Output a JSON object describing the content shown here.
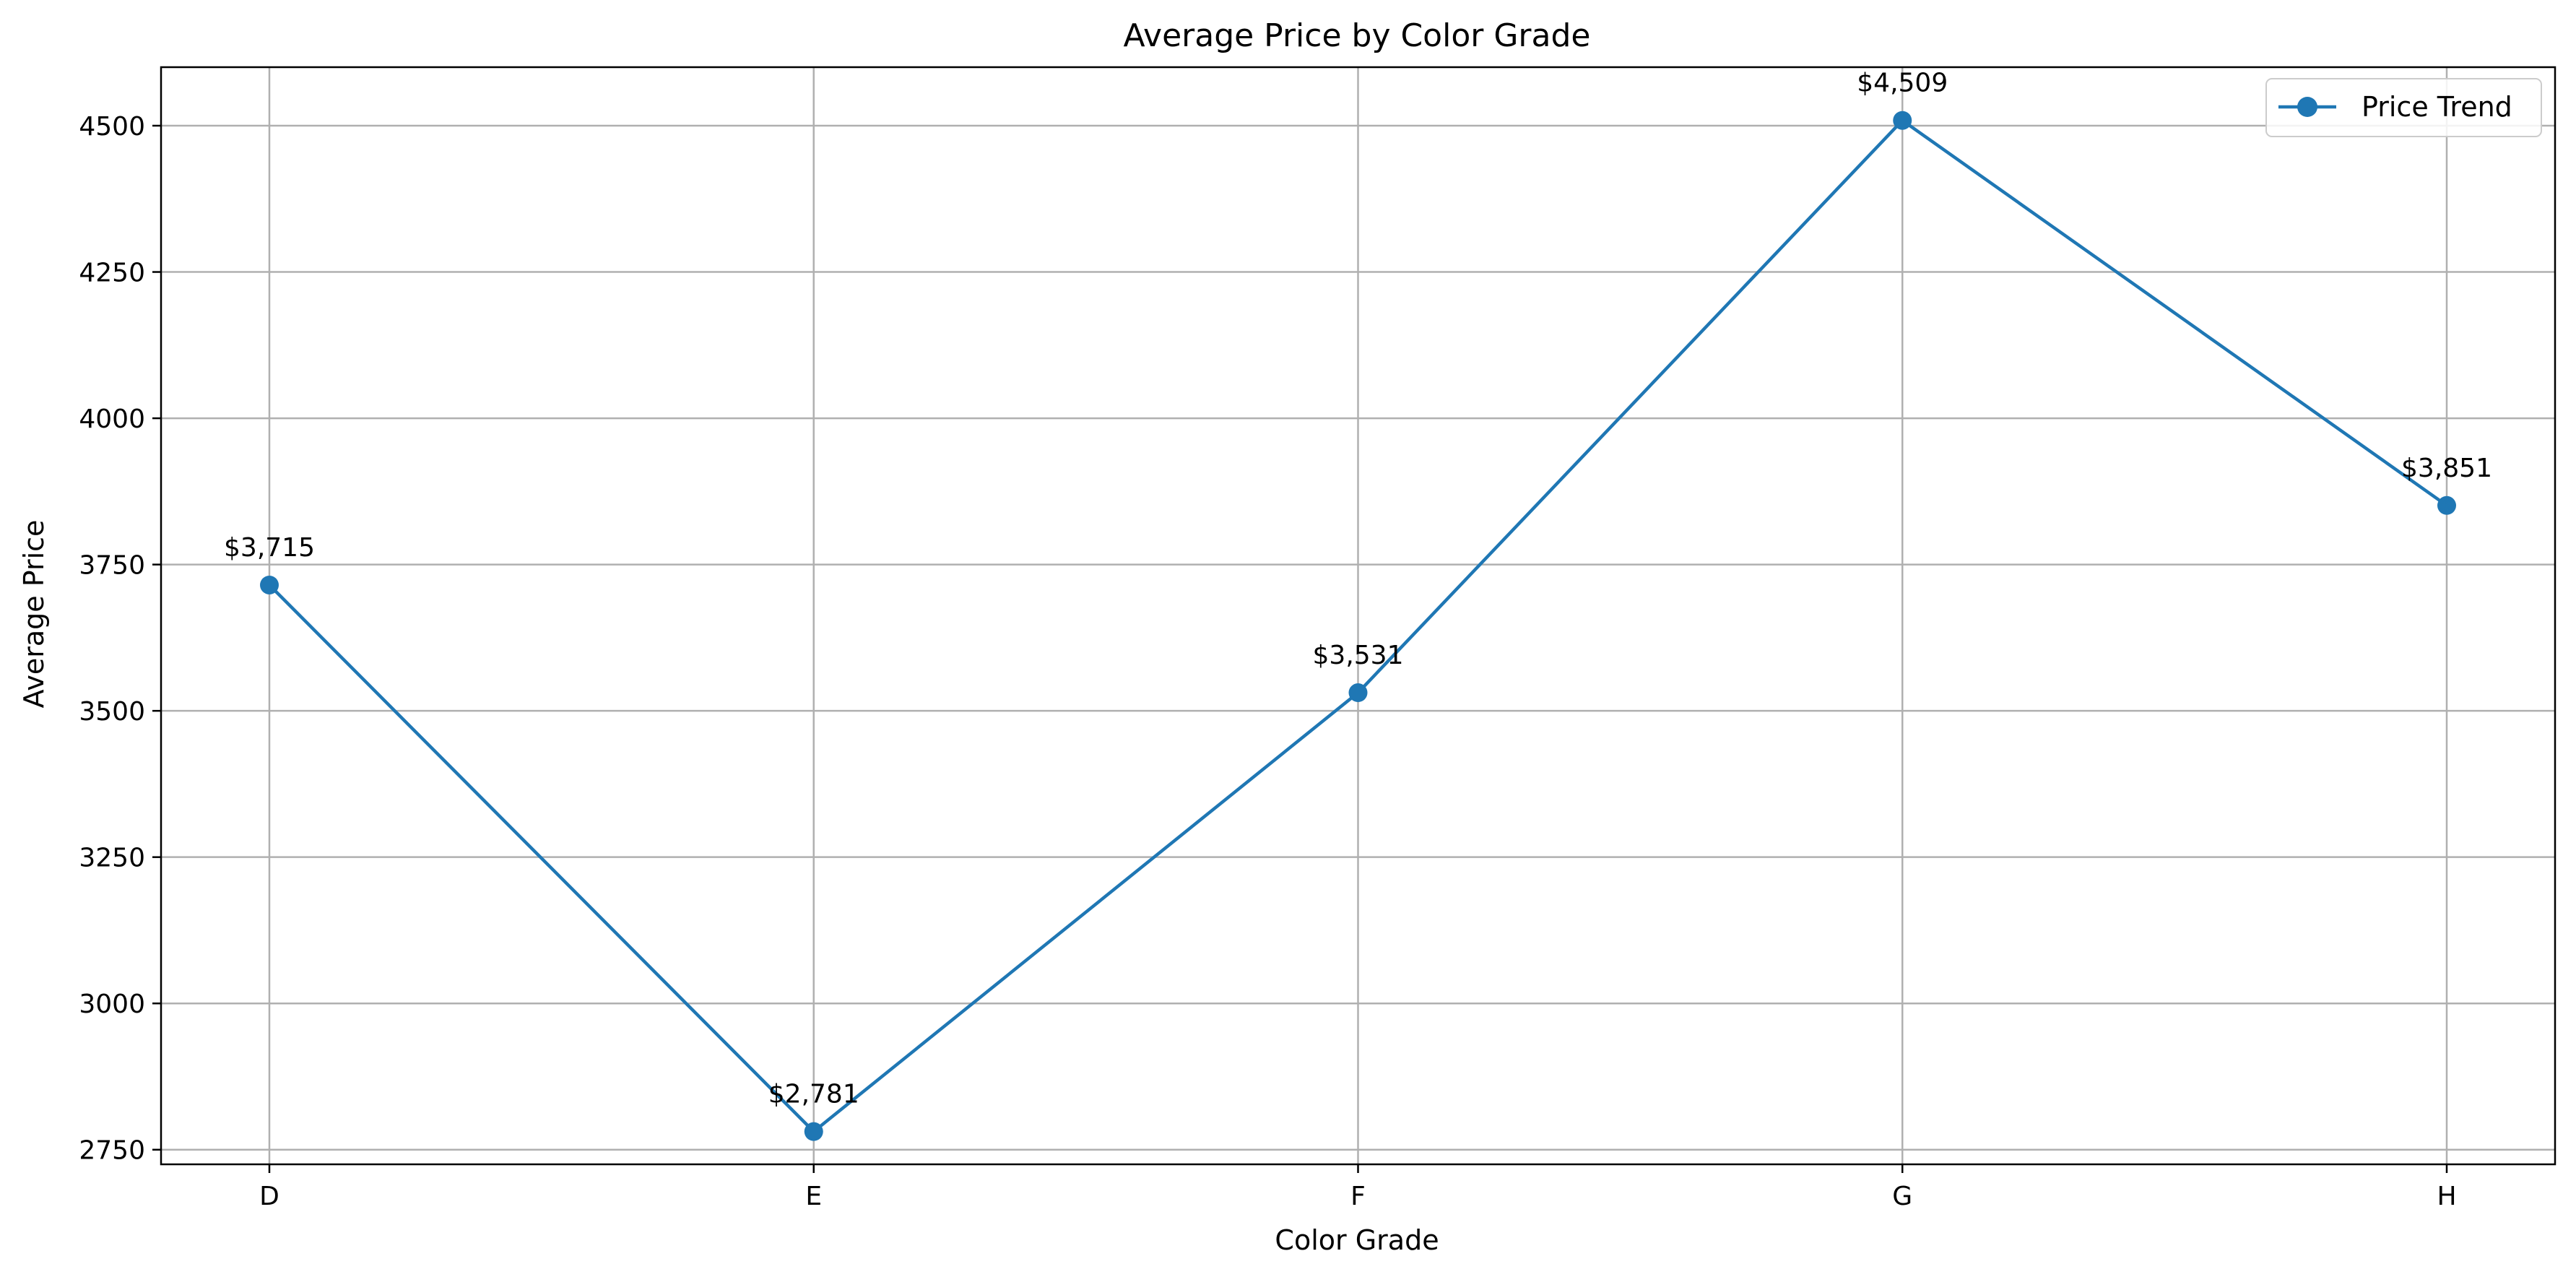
{
  "chart_data": {
    "type": "line",
    "title": "Average Price by Color Grade",
    "xlabel": "Color Grade",
    "ylabel": "Average Price",
    "categories": [
      "D",
      "E",
      "F",
      "G",
      "H"
    ],
    "series": [
      {
        "name": "Price Trend",
        "values": [
          3715,
          2781,
          3531,
          4509,
          3851
        ],
        "data_labels": [
          "$3,715",
          "$2,781",
          "$3,531",
          "$4,509",
          "$3,851"
        ],
        "marker": "circle"
      }
    ],
    "yticks": [
      2750,
      3000,
      3250,
      3500,
      3750,
      4000,
      4250,
      4500
    ],
    "ylim": [
      2725,
      4600
    ],
    "grid": true,
    "legend": {
      "position": "top-right"
    },
    "colors": {
      "series": "#1f77b4",
      "grid": "#b0b0b0",
      "axes": "#000000"
    }
  }
}
